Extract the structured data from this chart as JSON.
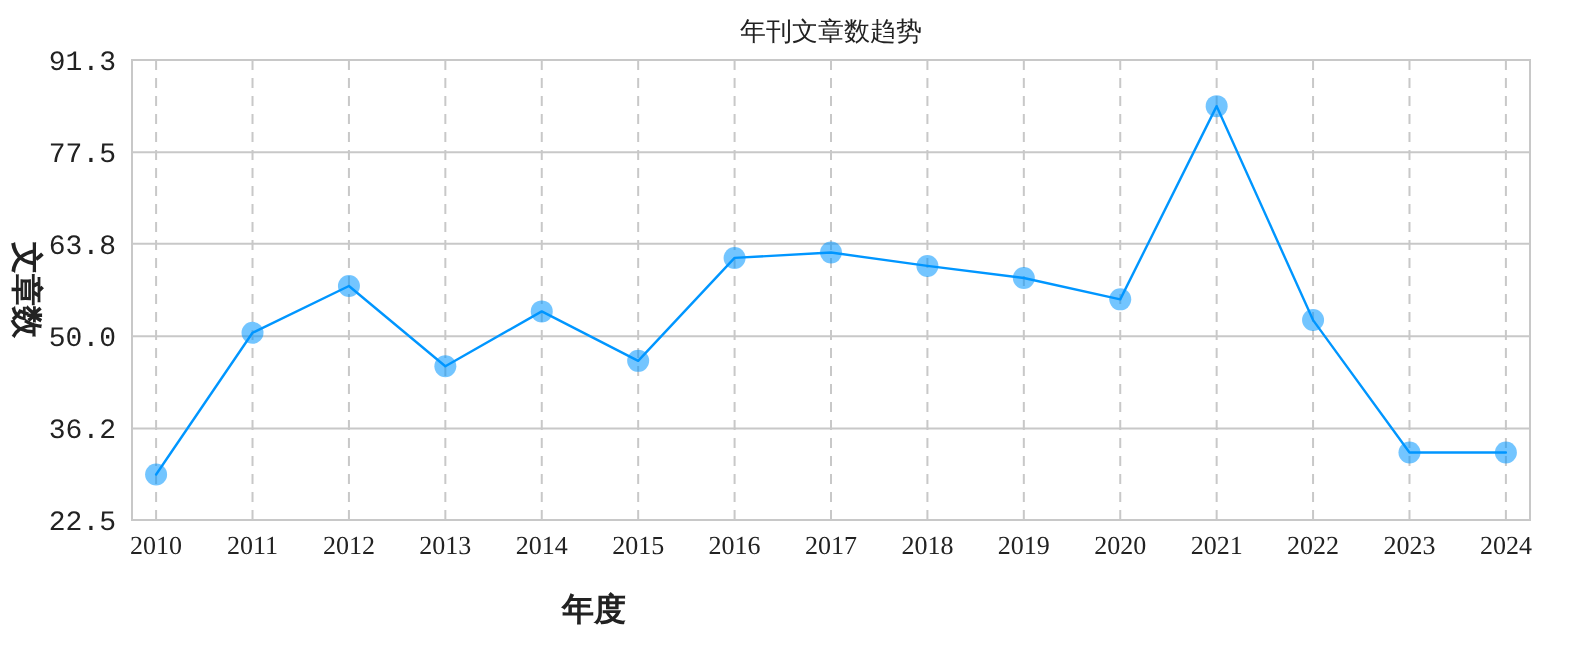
{
  "chart_data": {
    "type": "line",
    "title": "年刊文章数趋势",
    "xlabel": "年度",
    "ylabel": "文章数",
    "categories": [
      "2010",
      "2011",
      "2012",
      "2013",
      "2014",
      "2015",
      "2016",
      "2017",
      "2018",
      "2019",
      "2020",
      "2021",
      "2022",
      "2023",
      "2024"
    ],
    "series": [
      {
        "color": "#0096ff",
        "values": [
          29.3,
          50.5,
          57.5,
          45.5,
          53.7,
          46.3,
          61.7,
          62.5,
          60.5,
          58.7,
          55.5,
          84.4,
          52.4,
          32.6,
          32.6
        ]
      }
    ],
    "ylim": [
      22.5,
      91.3
    ],
    "yticks": [
      22.5,
      36.2,
      {
        "value": 50,
        "label": "50.0"
      },
      63.8,
      77.5,
      91.3
    ],
    "grid": true,
    "marker": "circle",
    "line_style": "solid"
  }
}
